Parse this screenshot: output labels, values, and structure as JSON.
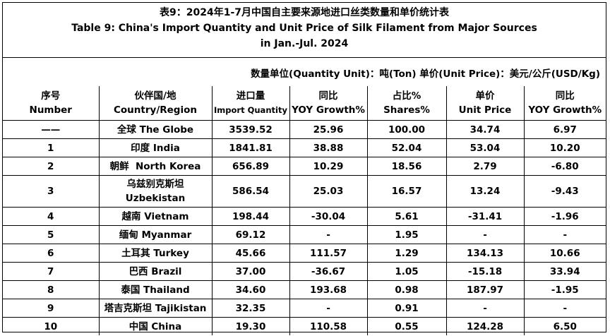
{
  "title": {
    "zh": "表9：2024年1-7月中国自主要来源地进口丝类数量和单价统计表",
    "en_line1": "Table 9: China's Import Quantity and Unit Price of Silk Filament from Major Sources",
    "en_line2": "in Jan.-Jul. 2024"
  },
  "unit_note": "数量单位(Quantity Unit)：吨(Ton)  单价(Unit Price)：美元/公斤(USD/Kg)",
  "headers": {
    "number": [
      "序号",
      "Number"
    ],
    "country": [
      "伙伴国/地",
      "Country/Region"
    ],
    "quantity": [
      "进口量",
      "Import Quantity"
    ],
    "qty_yoy": [
      "同比",
      "YOY Growth%"
    ],
    "shares": [
      "占比%",
      "Shares%"
    ],
    "price": [
      "单价",
      "Unit Price"
    ],
    "price_yoy": [
      "同比",
      "YOY Growth%"
    ]
  },
  "rows": [
    {
      "no": "——",
      "country": "全球 The Globe",
      "qty": "3539.52",
      "qty_yoy": "25.96",
      "share": "100.00",
      "price": "34.74",
      "price_yoy": "6.97"
    },
    {
      "no": "1",
      "country": "印度 India",
      "qty": "1841.81",
      "qty_yoy": "38.88",
      "share": "52.04",
      "price": "53.04",
      "price_yoy": "10.20"
    },
    {
      "no": "2",
      "country": "朝鲜  North Korea",
      "qty": "656.89",
      "qty_yoy": "10.29",
      "share": "18.56",
      "price": "2.79",
      "price_yoy": "-6.80"
    },
    {
      "no": "3",
      "country": "乌兹别克斯坦",
      "country2": "Uzbekistan",
      "qty": "586.54",
      "qty_yoy": "25.03",
      "share": "16.57",
      "price": "13.24",
      "price_yoy": "-9.43"
    },
    {
      "no": "4",
      "country": "越南 Vietnam",
      "qty": "198.44",
      "qty_yoy": "-30.04",
      "share": "5.61",
      "price": "-31.41",
      "price_yoy": "-1.96"
    },
    {
      "no": "5",
      "country": "缅甸 Myanmar",
      "qty": "69.12",
      "qty_yoy": "-",
      "share": "1.95",
      "price": "-",
      "price_yoy": "-"
    },
    {
      "no": "6",
      "country": "土耳其 Turkey",
      "qty": "45.66",
      "qty_yoy": "111.57",
      "share": "1.29",
      "price": "134.13",
      "price_yoy": "10.66"
    },
    {
      "no": "7",
      "country": "巴西 Brazil",
      "qty": "37.00",
      "qty_yoy": "-36.67",
      "share": "1.05",
      "price": "-15.18",
      "price_yoy": "33.94"
    },
    {
      "no": "8",
      "country": "泰国 Thailand",
      "qty": "34.60",
      "qty_yoy": "193.68",
      "share": "0.98",
      "price": "187.97",
      "price_yoy": "-1.95"
    },
    {
      "no": "9",
      "country": "塔吉克斯坦 Tajikistan",
      "qty": "32.35",
      "qty_yoy": "-",
      "share": "0.91",
      "price": "-",
      "price_yoy": "-"
    },
    {
      "no": "10",
      "country": "中国 China",
      "qty": "19.30",
      "qty_yoy": "110.58",
      "share": "0.55",
      "price": "124.28",
      "price_yoy": "6.50"
    }
  ]
}
